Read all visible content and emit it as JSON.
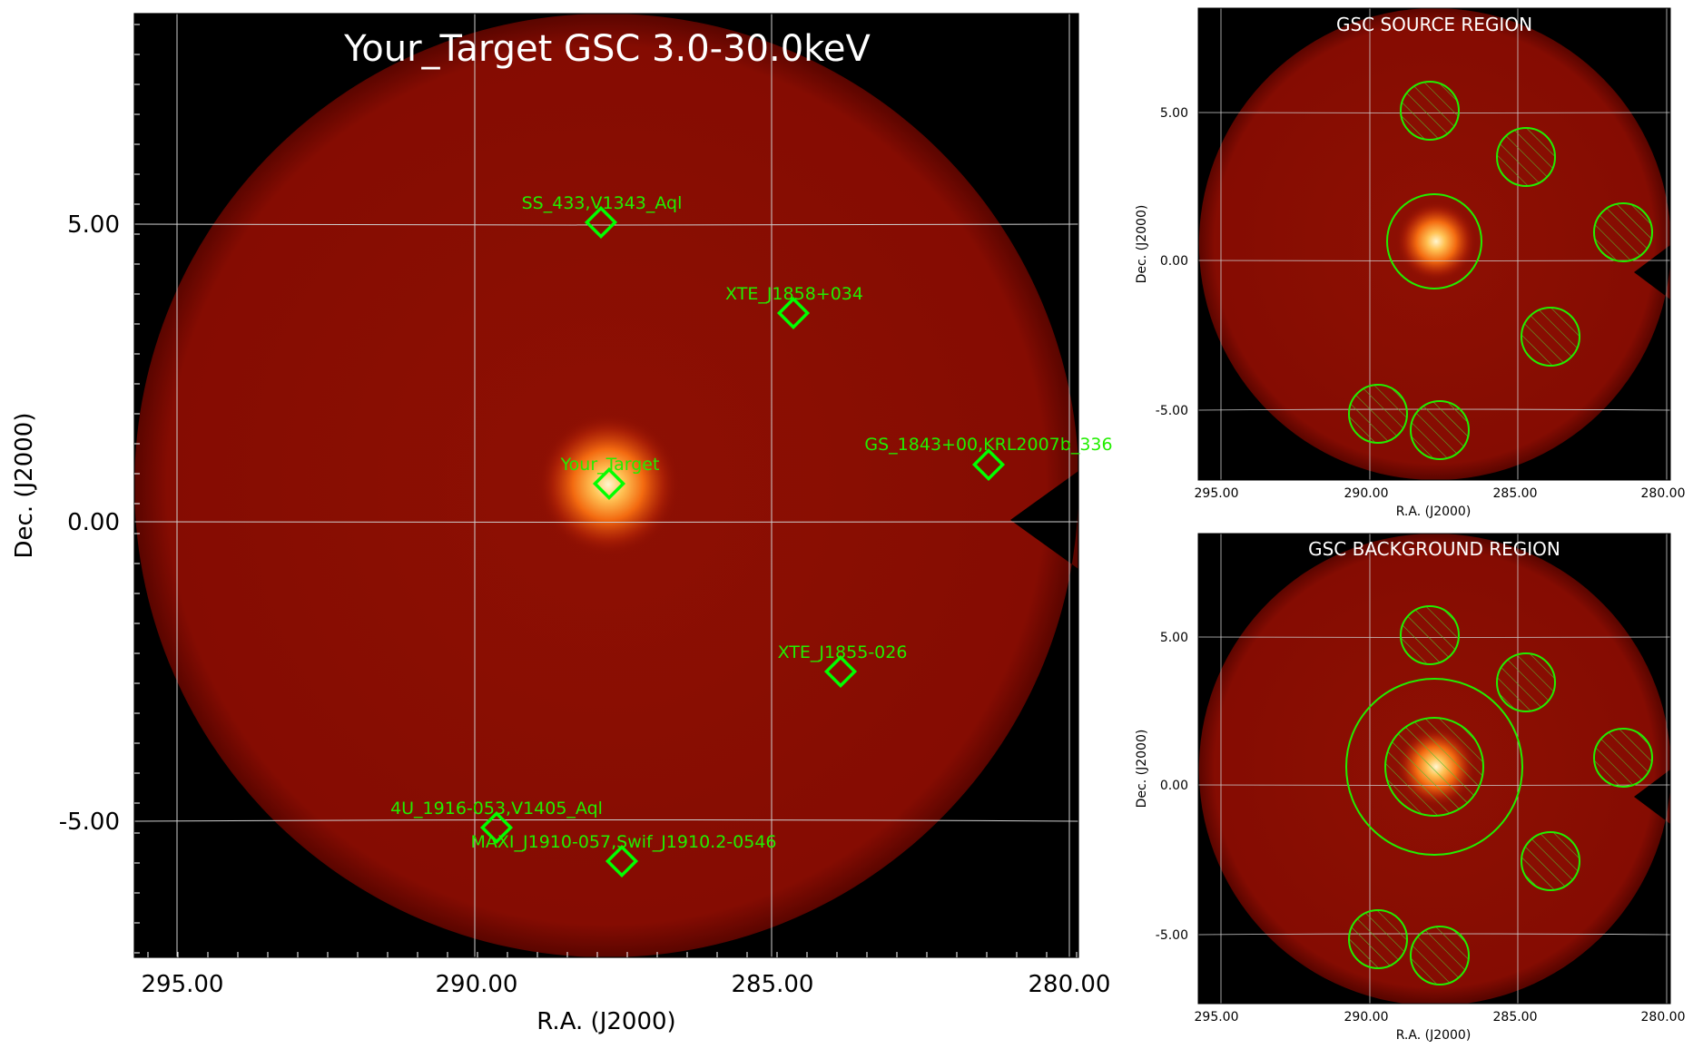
{
  "main": {
    "title": "Your_Target GSC 3.0-30.0keV",
    "xlabel": "R.A. (J2000)",
    "ylabel": "Dec. (J2000)",
    "x_ticks": [
      "295.00",
      "290.00",
      "285.00",
      "280.00"
    ],
    "y_ticks": [
      "5.00",
      "0.00",
      "-5.00"
    ],
    "sources": [
      {
        "label": "SS_433,V1343_Aql"
      },
      {
        "label": "XTE_J1858+034"
      },
      {
        "label": "Your_Target"
      },
      {
        "label": "GS_1843+00,KRL2007b_336"
      },
      {
        "label": "XTE_J1855-026"
      },
      {
        "label": "4U_1916-053,V1405_Aql"
      },
      {
        "label": "MAXI_J1910-057,Swif_J1910.2-0546"
      }
    ]
  },
  "source_panel": {
    "title": "GSC SOURCE REGION",
    "xlabel": "R.A. (J2000)",
    "ylabel": "Dec. (J2000)",
    "x_ticks": [
      "295.00",
      "290.00",
      "285.00",
      "280.00"
    ],
    "y_ticks": [
      "5.00",
      "0.00",
      "-5.00"
    ]
  },
  "background_panel": {
    "title": "GSC BACKGROUND REGION",
    "xlabel": "R.A. (J2000)",
    "ylabel": "Dec. (J2000)",
    "x_ticks": [
      "295.00",
      "290.00",
      "285.00",
      "280.00"
    ],
    "y_ticks": [
      "5.00",
      "0.00",
      "-5.00"
    ]
  },
  "colors": {
    "region": "#00ff00",
    "grid": "#d8d8d8",
    "field": "#8e0e02",
    "hot": "#fff4c0"
  }
}
